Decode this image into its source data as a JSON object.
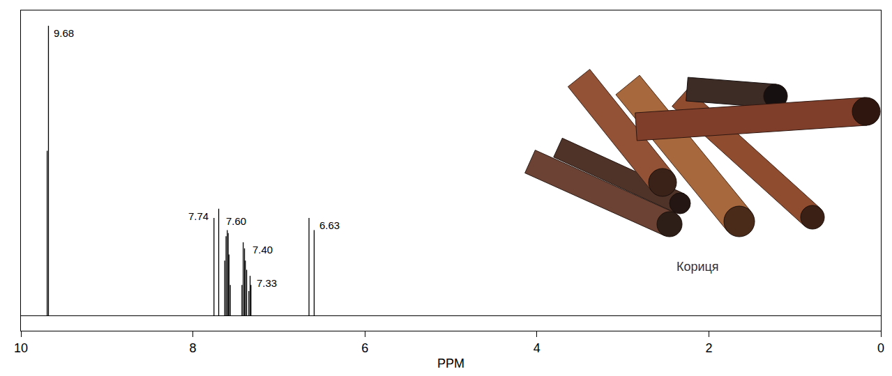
{
  "chart_data": {
    "type": "stem",
    "xlabel": "PPM",
    "x": [
      9.695,
      9.68,
      7.755,
      7.7,
      7.63,
      7.615,
      7.6,
      7.59,
      7.58,
      7.565,
      7.43,
      7.415,
      7.4,
      7.39,
      7.375,
      7.35,
      7.335,
      7.325,
      6.65,
      6.59
    ],
    "values": [
      54,
      95,
      32,
      35,
      18,
      26,
      28,
      27,
      20,
      10,
      10,
      24,
      22,
      18,
      15,
      8,
      13,
      10,
      32,
      28
    ],
    "color": "#000000",
    "xlim": [
      10,
      0
    ],
    "xticks": [
      10,
      8,
      6,
      4,
      2,
      0
    ],
    "ylim": [
      -5,
      100
    ],
    "yticks": [],
    "tick_labels": "x",
    "grid": false,
    "annotations": [
      {
        "x": 9.68,
        "text": "9.68"
      },
      {
        "x": 7.74,
        "text": "7.74"
      },
      {
        "x": 7.6,
        "text": "7.60"
      },
      {
        "x": 7.4,
        "text": "7.40"
      },
      {
        "x": 7.33,
        "text": "7.33"
      },
      {
        "x": 6.63,
        "text": "6.63"
      }
    ],
    "image_caption": "Кориця"
  }
}
